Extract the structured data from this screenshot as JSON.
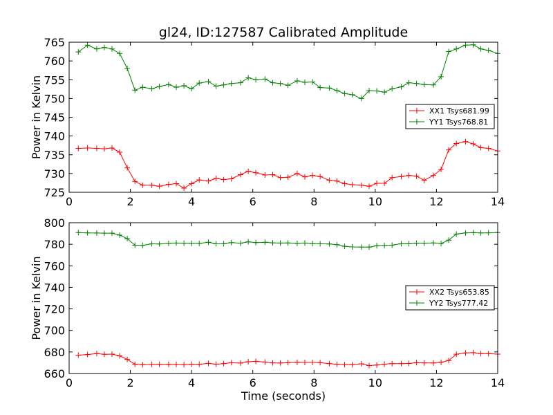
{
  "chart_data": [
    {
      "type": "line",
      "title": "gl24, ID:127587 Calibrated Amplitude",
      "xlabel": "",
      "ylabel": "Power in Kelvin",
      "xlim": [
        0,
        14
      ],
      "ylim": [
        725,
        765
      ],
      "xticks": [
        0,
        2,
        4,
        6,
        8,
        10,
        12,
        14
      ],
      "yticks": [
        725,
        730,
        735,
        740,
        745,
        750,
        755,
        760,
        765
      ],
      "legend_position": "center-right",
      "x": [
        0.3,
        0.6,
        0.9,
        1.15,
        1.4,
        1.65,
        1.9,
        2.15,
        2.4,
        2.7,
        2.95,
        3.25,
        3.5,
        3.75,
        4.0,
        4.25,
        4.55,
        4.8,
        5.05,
        5.3,
        5.6,
        5.85,
        6.1,
        6.4,
        6.65,
        6.9,
        7.15,
        7.45,
        7.7,
        7.95,
        8.2,
        8.5,
        8.75,
        9.0,
        9.25,
        9.55,
        9.8,
        10.05,
        10.3,
        10.55,
        10.85,
        11.1,
        11.35,
        11.6,
        11.9,
        12.15,
        12.4,
        12.65,
        12.95,
        13.2,
        13.45,
        13.7,
        14.0
      ],
      "series": [
        {
          "name": "XX1 Tsys681.99",
          "color": "#ff0000",
          "values": [
            736.7,
            736.8,
            736.7,
            736.6,
            736.8,
            735.7,
            731.5,
            727.9,
            726.9,
            726.9,
            726.6,
            727.1,
            727.3,
            726.1,
            727.3,
            728.3,
            728.0,
            728.7,
            728.4,
            728.6,
            729.7,
            730.6,
            730.2,
            729.6,
            729.7,
            728.9,
            729.0,
            730.0,
            729.1,
            729.5,
            729.2,
            728.2,
            728.0,
            727.3,
            727.0,
            726.9,
            726.6,
            727.4,
            727.4,
            728.9,
            729.2,
            729.5,
            729.3,
            728.2,
            729.5,
            731.1,
            736.3,
            738.0,
            738.5,
            737.9,
            736.9,
            736.7,
            736.0
          ]
        },
        {
          "name": "YY1 Tsys768.81",
          "color": "#008000",
          "values": [
            762.4,
            764.2,
            763.2,
            763.6,
            763.2,
            762.0,
            758.0,
            752.2,
            753.0,
            752.6,
            753.2,
            753.7,
            753.0,
            753.4,
            752.6,
            754.1,
            754.5,
            753.3,
            753.6,
            754.0,
            754.2,
            755.5,
            755.0,
            755.2,
            754.2,
            754.0,
            753.5,
            754.7,
            754.3,
            754.4,
            752.9,
            752.8,
            752.1,
            751.3,
            751.0,
            750.0,
            752.1,
            752.0,
            751.7,
            752.6,
            753.1,
            754.2,
            754.0,
            753.7,
            753.6,
            755.8,
            762.5,
            763.2,
            764.2,
            764.3,
            763.2,
            762.8,
            762.0
          ]
        }
      ]
    },
    {
      "type": "line",
      "title": "",
      "xlabel": "Time (seconds)",
      "ylabel": "Power in Kelvin",
      "xlim": [
        0,
        14
      ],
      "ylim": [
        660,
        800
      ],
      "xticks": [
        0,
        2,
        4,
        6,
        8,
        10,
        12,
        14
      ],
      "yticks": [
        660,
        680,
        700,
        720,
        740,
        760,
        780,
        800
      ],
      "legend_position": "center-right",
      "x": [
        0.3,
        0.6,
        0.9,
        1.15,
        1.4,
        1.65,
        1.9,
        2.15,
        2.4,
        2.7,
        2.95,
        3.25,
        3.5,
        3.75,
        4.0,
        4.25,
        4.55,
        4.8,
        5.05,
        5.3,
        5.6,
        5.85,
        6.1,
        6.4,
        6.65,
        6.9,
        7.15,
        7.45,
        7.7,
        7.95,
        8.2,
        8.5,
        8.75,
        9.0,
        9.25,
        9.55,
        9.8,
        10.05,
        10.3,
        10.55,
        10.85,
        11.1,
        11.35,
        11.6,
        11.9,
        12.15,
        12.4,
        12.65,
        12.95,
        13.2,
        13.45,
        13.7,
        14.0
      ],
      "series": [
        {
          "name": "XX2 Tsys653.85",
          "color": "#ff0000",
          "values": [
            677.0,
            677.6,
            678.5,
            677.8,
            678.0,
            676.4,
            673.1,
            668.6,
            668.1,
            668.4,
            668.5,
            668.5,
            668.4,
            668.3,
            668.6,
            668.6,
            669.4,
            668.7,
            669.1,
            670.0,
            669.7,
            670.9,
            671.3,
            670.6,
            669.9,
            669.8,
            670.1,
            670.4,
            670.3,
            670.3,
            670.1,
            669.2,
            668.6,
            668.3,
            668.2,
            669.0,
            667.4,
            667.9,
            668.7,
            669.2,
            669.2,
            669.3,
            670.1,
            669.9,
            669.8,
            670.4,
            672.1,
            677.9,
            679.1,
            679.3,
            678.4,
            678.5,
            678.0
          ]
        },
        {
          "name": "YY2 Tsys777.42",
          "color": "#008000",
          "values": [
            790.8,
            790.5,
            790.4,
            790.3,
            790.3,
            788.5,
            785.2,
            779.1,
            779.0,
            780.4,
            780.2,
            780.8,
            781.1,
            781.0,
            780.8,
            780.8,
            781.8,
            780.4,
            780.5,
            781.5,
            781.0,
            782.3,
            781.5,
            781.8,
            781.3,
            781.1,
            781.2,
            780.8,
            781.1,
            780.6,
            780.4,
            780.2,
            779.6,
            778.1,
            777.5,
            777.4,
            777.4,
            778.6,
            778.9,
            779.2,
            780.5,
            780.5,
            781.0,
            781.0,
            781.2,
            780.7,
            783.8,
            789.5,
            790.5,
            790.9,
            790.5,
            790.6,
            790.9
          ]
        }
      ]
    }
  ]
}
